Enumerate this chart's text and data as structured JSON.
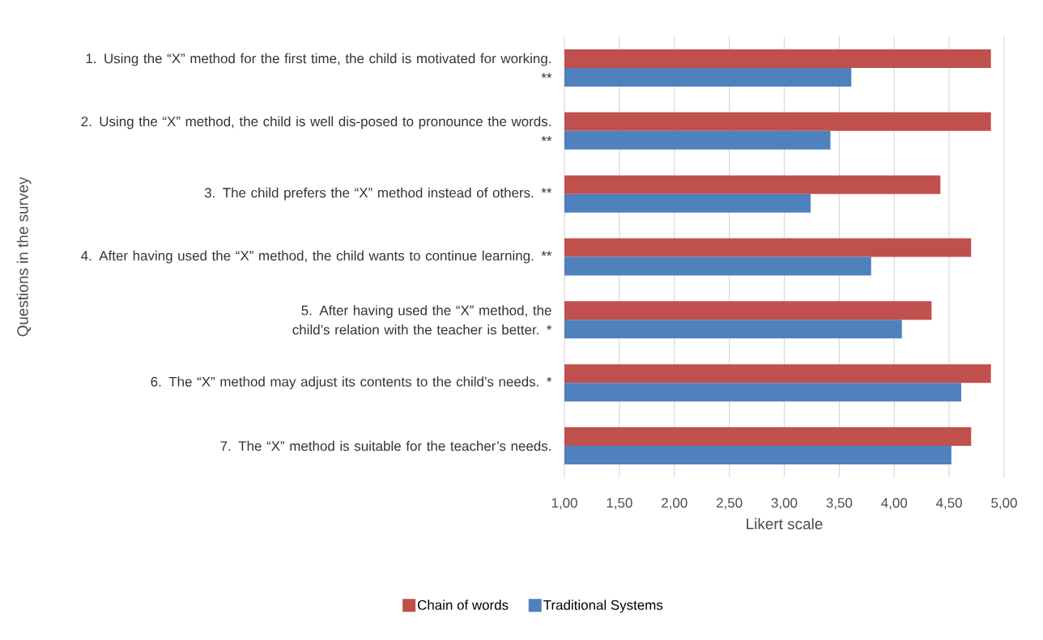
{
  "chart_data": {
    "type": "bar",
    "orientation": "horizontal",
    "xlabel": "Likert scale",
    "ylabel": "Questions in the survey",
    "categories": [
      "1. Using the “X” method for the first time, the child is motivated for working. **",
      "2. Using the “X” method, the child is well dis-posed to pronounce the words. **",
      "3. The child prefers the “X” method instead of others. **",
      "4. After having used the “X” method, the child wants to continue learning. **",
      "5. After having used the “X” method, the child’s relation with the teacher is better. *",
      "6. The “X” method may adjust its contents to the child’s needs. *",
      "7. The “X” method is suitable for the teacher’s needs."
    ],
    "series": [
      {
        "name": "Chain of words",
        "color": "#c0504d",
        "values": [
          4.88,
          4.88,
          4.42,
          4.7,
          4.34,
          4.88,
          4.7
        ]
      },
      {
        "name": "Traditional Systems",
        "color": "#4f81bd",
        "values": [
          3.61,
          3.42,
          3.24,
          3.79,
          4.07,
          4.61,
          4.52
        ]
      }
    ],
    "xlim": [
      1,
      5
    ],
    "xticks": [
      {
        "value": 1,
        "label": "1,00"
      },
      {
        "value": 1.5,
        "label": "1,50"
      },
      {
        "value": 2,
        "label": "2,00"
      },
      {
        "value": 2.5,
        "label": "2,50"
      },
      {
        "value": 3,
        "label": "3,00"
      },
      {
        "value": 3.5,
        "label": "3,50"
      },
      {
        "value": 4,
        "label": "4,00"
      },
      {
        "value": 4.5,
        "label": "4,50"
      },
      {
        "value": 5,
        "label": "5,00"
      }
    ],
    "grid": "x",
    "legend": "bottom"
  }
}
